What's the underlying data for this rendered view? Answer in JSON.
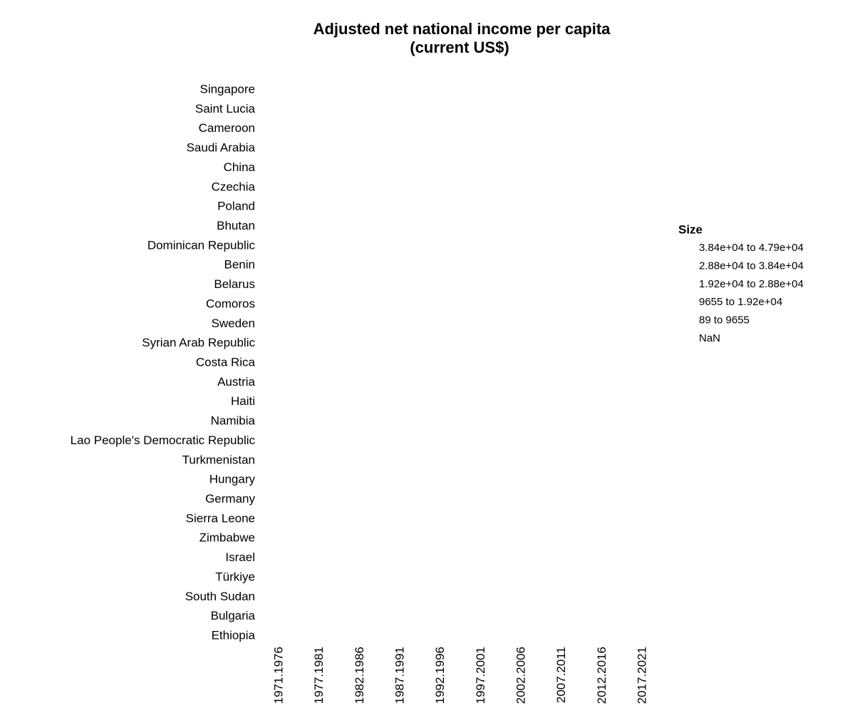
{
  "chart_data": {
    "type": "bubble",
    "title": [
      "Adjusted net national income per capita",
      "(current US$)"
    ],
    "categories": [
      "1971.1976",
      "1977.1981",
      "1982.1986",
      "1987.1991",
      "1992.1996",
      "1997.2001",
      "2002.2006",
      "2007.2011",
      "2012.2016",
      "2017.2021"
    ],
    "y_categories": [
      "Singapore",
      "Saint Lucia",
      "Cameroon",
      "Saudi Arabia",
      "China",
      "Czechia",
      "Poland",
      "Bhutan",
      "Dominican Republic",
      "Benin",
      "Belarus",
      "Comoros",
      "Sweden",
      "Syrian Arab Republic",
      "Costa Rica",
      "Austria",
      "Haiti",
      "Namibia",
      "Lao People's Democratic Republic",
      "Turkmenistan",
      "Hungary",
      "Germany",
      "Sierra Leone",
      "Zimbabwe",
      "Israel",
      "Türkiye",
      "South Sudan",
      "Bulgaria",
      "Ethiopia"
    ],
    "legend": {
      "title": "Size",
      "labels": [
        "3.84e+04 to 4.79e+04",
        "2.88e+04 to 3.84e+04",
        "1.92e+04 to 2.88e+04",
        "9655 to 1.92e+04",
        "89 to 9655",
        "NaN"
      ]
    }
  }
}
